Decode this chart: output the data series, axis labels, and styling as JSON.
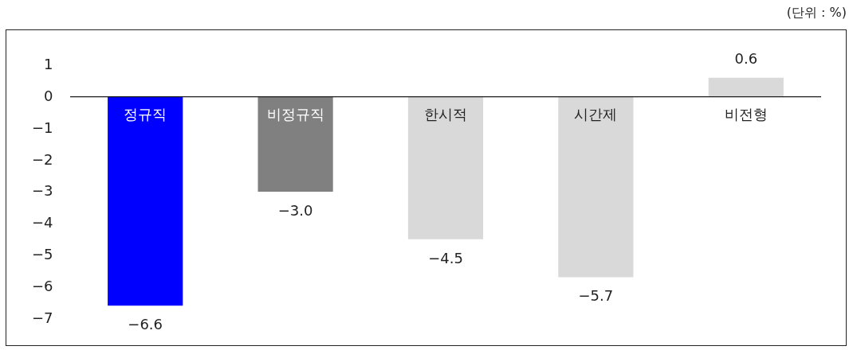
{
  "chart_data": {
    "type": "bar",
    "annotations": [
      "(단위 : %)"
    ],
    "categories": [
      "정규직",
      "비정규직",
      "한시적",
      "시간제",
      "비전형"
    ],
    "values": [
      -6.6,
      -3.0,
      -4.5,
      -5.7,
      0.6
    ],
    "value_labels": [
      "−6.6",
      "−3.0",
      "−4.5",
      "−5.7",
      "0.6"
    ],
    "colors": [
      "#0000ff",
      "#808080",
      "#d9d9d9",
      "#d9d9d9",
      "#d9d9d9"
    ],
    "ylim": [
      -7.85,
      2.1
    ],
    "yticks": [
      1,
      0,
      {
        "value": -1,
        "label": "−1"
      },
      {
        "value": -2,
        "label": "−2"
      },
      {
        "value": -3,
        "label": "−3"
      },
      {
        "value": -4,
        "label": "−4"
      },
      {
        "value": -5,
        "label": "−5"
      },
      {
        "value": -6,
        "label": "−6"
      },
      {
        "value": -7,
        "label": "−7"
      }
    ],
    "grid": false
  }
}
